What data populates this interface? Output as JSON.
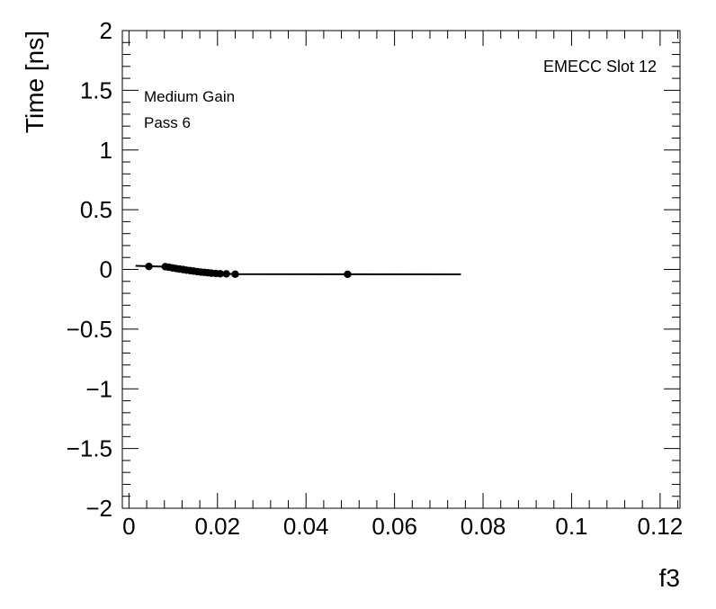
{
  "chart_data": {
    "type": "scatter",
    "title": "",
    "xlabel": "f3",
    "ylabel": "Time [ns]",
    "xlim": [
      -0.0015,
      0.1245
    ],
    "ylim": [
      -2,
      2
    ],
    "grid": false,
    "legend": "none",
    "x_ticks": [
      0,
      0.02,
      0.04,
      0.06,
      0.08,
      0.1,
      0.12
    ],
    "x_tick_labels": [
      "0",
      "0.02",
      "0.04",
      "0.06",
      "0.08",
      "0.1",
      "0.12"
    ],
    "y_ticks": [
      -2,
      -1.5,
      -1,
      -0.5,
      0,
      0.5,
      1,
      1.5,
      2
    ],
    "y_tick_labels": [
      "−2",
      "−1.5",
      "−1",
      "−0.5",
      "0",
      "0.5",
      "1",
      "1.5",
      "2"
    ],
    "annotations": {
      "gain": "Medium Gain",
      "pass": "Pass 6",
      "slot": "EMECC Slot 12"
    },
    "series": [
      {
        "marker_color": "#000000",
        "points": [
          {
            "x": 0.0045,
            "y": 0.025
          },
          {
            "x": 0.0082,
            "y": 0.023
          },
          {
            "x": 0.009,
            "y": 0.018
          },
          {
            "x": 0.0098,
            "y": 0.013
          },
          {
            "x": 0.0106,
            "y": 0.008
          },
          {
            "x": 0.0114,
            "y": 0.003
          },
          {
            "x": 0.0122,
            "y": -0.001
          },
          {
            "x": 0.013,
            "y": -0.006
          },
          {
            "x": 0.0138,
            "y": -0.01
          },
          {
            "x": 0.0146,
            "y": -0.014
          },
          {
            "x": 0.0154,
            "y": -0.018
          },
          {
            "x": 0.0162,
            "y": -0.022
          },
          {
            "x": 0.017,
            "y": -0.025
          },
          {
            "x": 0.0178,
            "y": -0.028
          },
          {
            "x": 0.0186,
            "y": -0.031
          },
          {
            "x": 0.0196,
            "y": -0.034
          },
          {
            "x": 0.0206,
            "y": -0.036
          },
          {
            "x": 0.022,
            "y": -0.037
          },
          {
            "x": 0.024,
            "y": -0.04
          },
          {
            "x": 0.0494,
            "y": -0.041
          }
        ]
      }
    ],
    "fit_line": {
      "color": "#000000",
      "points": [
        {
          "x": 0.0015,
          "y": 0.03
        },
        {
          "x": 0.0082,
          "y": 0.023
        },
        {
          "x": 0.02,
          "y": -0.033
        },
        {
          "x": 0.024,
          "y": -0.04
        },
        {
          "x": 0.075,
          "y": -0.041
        }
      ]
    }
  }
}
